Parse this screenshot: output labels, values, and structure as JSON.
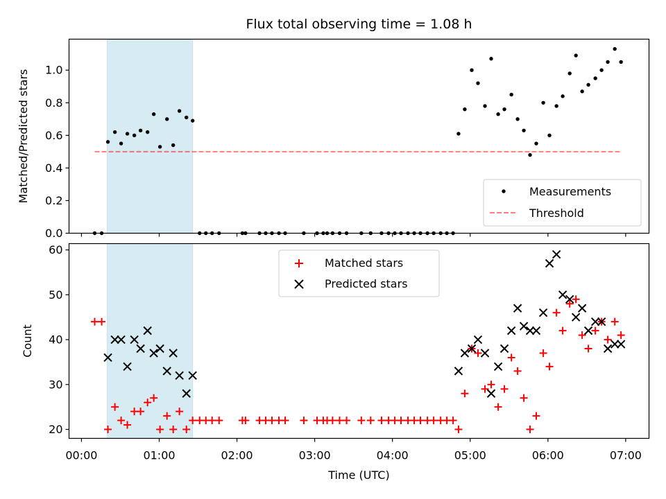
{
  "chart_data": {
    "title": "Flux total observing time = 1.08 h",
    "xlabel": "Time (UTC)",
    "x_ticks": [
      "00:00",
      "01:00",
      "02:00",
      "03:00",
      "04:00",
      "05:00",
      "06:00",
      "07:00"
    ],
    "xlim": [
      -0.16,
      7.3
    ],
    "shaded_interval": {
      "x": [
        0.33,
        1.43
      ],
      "color": "#add8e6"
    },
    "panels": [
      {
        "type": "scatter",
        "ylabel": "Matched/Predicted stars",
        "ylim": [
          0,
          1.19
        ],
        "y_ticks": [
          "0.0",
          "0.2",
          "0.4",
          "0.6",
          "0.8",
          "1.0"
        ],
        "legend": "lower-right",
        "series": [
          {
            "name": "Measurements",
            "marker": "dot",
            "color": "#000000",
            "x": [
              0.17,
              0.26,
              0.34,
              0.43,
              0.51,
              0.59,
              0.68,
              0.76,
              0.85,
              0.93,
              1.01,
              1.1,
              1.18,
              1.26,
              1.35,
              1.43,
              1.52,
              1.6,
              1.68,
              1.77,
              2.07,
              2.11,
              2.29,
              2.37,
              2.45,
              2.54,
              2.62,
              2.86,
              3.03,
              3.11,
              3.16,
              3.23,
              3.32,
              3.41,
              3.6,
              3.72,
              3.86,
              3.95,
              4.03,
              4.11,
              4.2,
              4.28,
              4.36,
              4.45,
              4.53,
              4.62,
              4.7,
              4.78,
              4.85,
              4.93,
              5.02,
              5.1,
              5.19,
              5.27,
              5.36,
              5.44,
              5.53,
              5.61,
              5.69,
              5.77,
              5.85,
              5.94,
              6.02,
              6.11,
              6.19,
              6.28,
              6.36,
              6.44,
              6.52,
              6.61,
              6.69,
              6.77,
              6.86,
              6.94
            ],
            "y": [
              0.0,
              0.0,
              0.56,
              0.62,
              0.55,
              0.61,
              0.6,
              0.63,
              0.62,
              0.73,
              0.53,
              0.7,
              0.54,
              0.75,
              0.71,
              0.69,
              0.0,
              0.0,
              0.0,
              0.0,
              0.0,
              0.0,
              0.0,
              0.0,
              0.0,
              0.0,
              0.0,
              0.0,
              0.0,
              0.0,
              0.0,
              0.0,
              0.0,
              0.0,
              0.0,
              0.0,
              0.0,
              0.0,
              0.0,
              0.0,
              0.0,
              0.0,
              0.0,
              0.0,
              0.0,
              0.0,
              0.0,
              0.0,
              0.61,
              0.76,
              1.0,
              0.92,
              0.78,
              1.07,
              0.73,
              0.76,
              0.85,
              0.7,
              0.63,
              0.48,
              0.55,
              0.8,
              0.6,
              0.78,
              0.84,
              0.98,
              1.09,
              0.87,
              0.91,
              0.95,
              1.0,
              1.05,
              1.13,
              1.05
            ]
          },
          {
            "name": "Threshold",
            "line": "dashed",
            "color": "#ff0000",
            "x": [
              0.17,
              6.94
            ],
            "y": [
              0.5,
              0.5
            ]
          }
        ]
      },
      {
        "type": "scatter",
        "ylabel": "Count",
        "ylim": [
          18,
          61.4
        ],
        "y_ticks": [
          "20",
          "30",
          "40",
          "50",
          "60"
        ],
        "legend": "upper-center",
        "series": [
          {
            "name": "Matched stars",
            "marker": "plus",
            "color": "#ff0000",
            "x": [
              0.17,
              0.26,
              0.34,
              0.43,
              0.51,
              0.59,
              0.68,
              0.76,
              0.85,
              0.93,
              1.01,
              1.1,
              1.18,
              1.26,
              1.35,
              1.43,
              1.52,
              1.6,
              1.68,
              1.77,
              2.07,
              2.11,
              2.29,
              2.37,
              2.45,
              2.54,
              2.62,
              2.86,
              3.03,
              3.11,
              3.16,
              3.23,
              3.32,
              3.41,
              3.6,
              3.72,
              3.86,
              3.95,
              4.03,
              4.11,
              4.2,
              4.28,
              4.36,
              4.45,
              4.53,
              4.62,
              4.7,
              4.78,
              4.85,
              4.93,
              5.02,
              5.1,
              5.19,
              5.27,
              5.36,
              5.44,
              5.53,
              5.61,
              5.69,
              5.77,
              5.85,
              5.94,
              6.02,
              6.11,
              6.19,
              6.28,
              6.36,
              6.44,
              6.52,
              6.61,
              6.69,
              6.77,
              6.86,
              6.94
            ],
            "y": [
              44,
              44,
              20,
              25,
              22,
              21,
              24,
              24,
              26,
              27,
              20,
              23,
              20,
              24,
              20,
              22,
              22,
              22,
              22,
              22,
              22,
              22,
              22,
              22,
              22,
              22,
              22,
              22,
              22,
              22,
              22,
              22,
              22,
              22,
              22,
              22,
              22,
              22,
              22,
              22,
              22,
              22,
              22,
              22,
              22,
              22,
              22,
              22,
              20,
              28,
              38,
              37,
              29,
              30,
              25,
              29,
              36,
              33,
              27,
              20,
              23,
              37,
              34,
              46,
              42,
              48,
              49,
              41,
              38,
              42,
              44,
              40,
              44,
              41
            ]
          },
          {
            "name": "Predicted stars",
            "marker": "x",
            "color": "#000000",
            "x": [
              0.34,
              0.43,
              0.51,
              0.59,
              0.68,
              0.76,
              0.85,
              0.93,
              1.01,
              1.1,
              1.18,
              1.26,
              1.35,
              1.43,
              4.85,
              4.93,
              5.02,
              5.1,
              5.19,
              5.27,
              5.36,
              5.44,
              5.53,
              5.61,
              5.69,
              5.77,
              5.85,
              5.94,
              6.02,
              6.11,
              6.19,
              6.28,
              6.36,
              6.44,
              6.52,
              6.61,
              6.69,
              6.77,
              6.86,
              6.94
            ],
            "y": [
              36,
              40,
              40,
              34,
              40,
              38,
              42,
              37,
              38,
              33,
              37,
              32,
              28,
              32,
              33,
              37,
              38,
              40,
              37,
              28,
              34,
              38,
              42,
              47,
              43,
              42,
              42,
              46,
              57,
              59,
              50,
              49,
              45,
              47,
              42,
              44,
              44,
              38,
              39,
              39
            ]
          }
        ]
      }
    ]
  }
}
